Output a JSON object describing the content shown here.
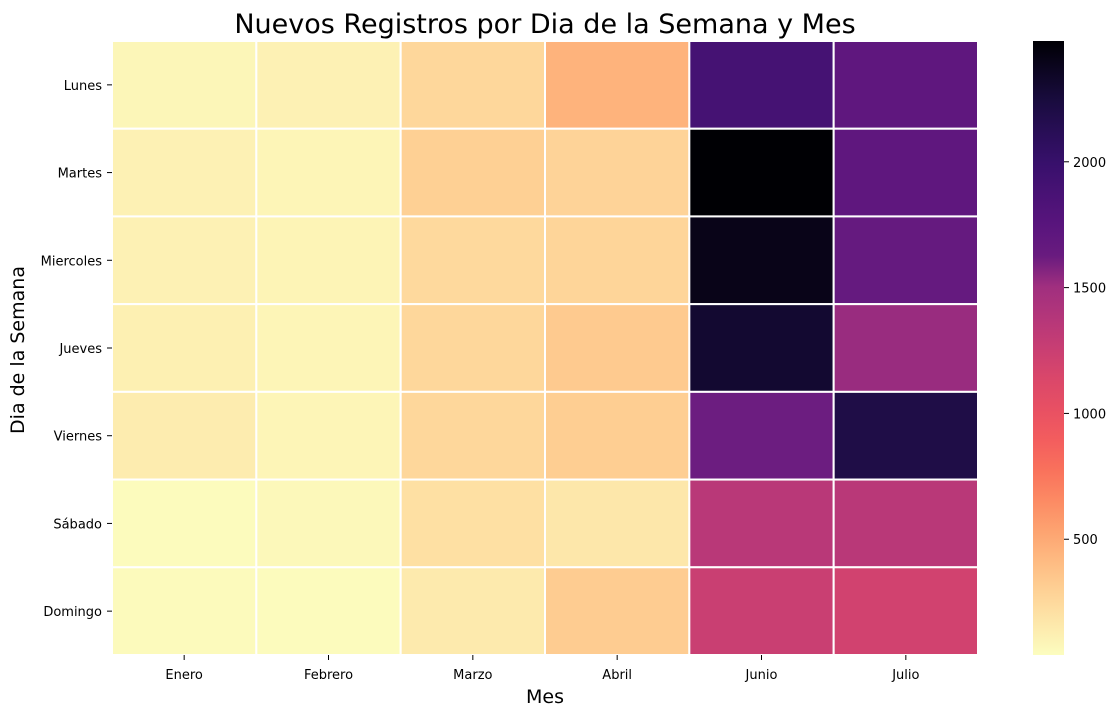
{
  "chart_data": {
    "type": "heatmap",
    "title": "Nuevos Registros por Dia de la Semana y Mes",
    "xlabel": "Mes",
    "ylabel": "Dia de la Semana",
    "x_categories": [
      "Enero",
      "Febrero",
      "Marzo",
      "Abril",
      "Junio",
      "Julio"
    ],
    "y_categories": [
      "Lunes",
      "Martes",
      "Miercoles",
      "Jueves",
      "Viernes",
      "Sábado",
      "Domingo"
    ],
    "values": [
      [
        80,
        110,
        260,
        450,
        1900,
        1700
      ],
      [
        110,
        90,
        300,
        280,
        2480,
        1700
      ],
      [
        110,
        95,
        250,
        270,
        2400,
        1650
      ],
      [
        120,
        90,
        260,
        330,
        2300,
        1550
      ],
      [
        140,
        90,
        260,
        310,
        1600,
        2200
      ],
      [
        50,
        70,
        210,
        170,
        1350,
        1350
      ],
      [
        60,
        50,
        150,
        320,
        1250,
        1200
      ]
    ],
    "colorscale": "magma_r",
    "vmin": 40,
    "vmax": 2480,
    "colorbar_ticks": [
      500,
      1000,
      1500,
      2000
    ],
    "grid": false,
    "cell_border_color": "#ffffff"
  }
}
